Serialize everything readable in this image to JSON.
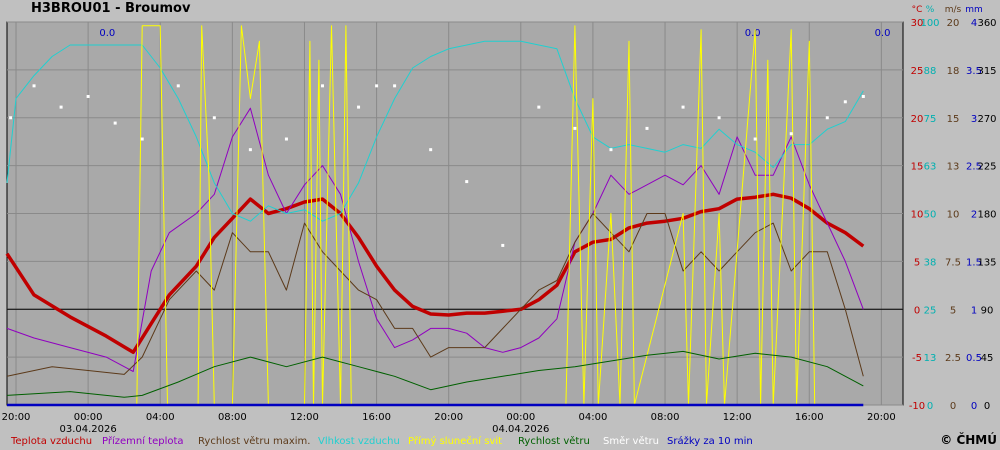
{
  "title": "H3BROU01 - Broumov",
  "copyright": "© ČHMÚ",
  "chart_data": {
    "type": "line",
    "x_ticks": [
      "20:00",
      "00:00",
      "04:00",
      "08:00",
      "12:00",
      "16:00",
      "20:00",
      "00:00",
      "04:00",
      "08:00",
      "12:00",
      "16:00",
      "20:00"
    ],
    "date_labels": [
      {
        "tick": 1,
        "text": "03.04.2026"
      },
      {
        "tick": 7,
        "text": "04.04.2026"
      }
    ],
    "x_range_hours": [
      -1.5,
      48.2
    ],
    "axes": [
      {
        "unit": "°C",
        "color": "#c00000",
        "ticks": [
          "30",
          "25",
          "20",
          "15",
          "10",
          "5",
          "0",
          "-5",
          "-10"
        ],
        "range": [
          -10,
          30
        ]
      },
      {
        "unit": "%",
        "color": "#00b0b0",
        "ticks": [
          "100",
          "88",
          "75",
          "63",
          "50",
          "38",
          "25",
          "13",
          "0"
        ],
        "range": [
          0,
          100
        ]
      },
      {
        "unit": "m/s",
        "color": "#5c3a1a",
        "ticks": [
          "20",
          "18",
          "15",
          "13",
          "10",
          "7.5",
          "5",
          "2.5",
          "0"
        ],
        "range": [
          0,
          20
        ]
      },
      {
        "unit": "mm",
        "color": "#0000c0",
        "ticks": [
          "4",
          "3.5",
          "3",
          "2.5",
          "2",
          "1.5",
          "1",
          "0.5",
          "0"
        ],
        "range": [
          0,
          4
        ]
      },
      {
        "unit": "",
        "color": "#000000",
        "ticks": [
          "360",
          "315",
          "270",
          "225",
          "180",
          "135",
          "90",
          "45",
          "0"
        ],
        "range": [
          0,
          360
        ]
      }
    ],
    "precip_totals": [
      "0.0",
      "0.0",
      "0.0"
    ],
    "legend": [
      {
        "name": "Teplota vzduchu",
        "color": "#c00000"
      },
      {
        "name": "Přízemní teplota",
        "color": "#9000c0"
      },
      {
        "name": "Rychlost větru maxim.",
        "color": "#5c3a1a"
      },
      {
        "name": "Vlhkost vzduchu",
        "color": "#20d0d0"
      },
      {
        "name": "Přímý sluneční svit",
        "color": "#ffff00"
      },
      {
        "name": "Rychlost větru",
        "color": "#006000"
      },
      {
        "name": "Směr větru",
        "color": "#ffffff"
      },
      {
        "name": "Srážky za 10 min",
        "color": "#0000c0"
      }
    ],
    "series": [
      {
        "name": "Teplota vzduchu",
        "unit": "°C",
        "points": [
          [
            -1.5,
            5.8
          ],
          [
            0,
            1.5
          ],
          [
            2,
            -0.8
          ],
          [
            4,
            -2.8
          ],
          [
            5.5,
            -4.5
          ],
          [
            6.5,
            -1.5
          ],
          [
            7.5,
            1.5
          ],
          [
            9,
            4.5
          ],
          [
            10,
            7.5
          ],
          [
            11,
            9.5
          ],
          [
            12,
            11.5
          ],
          [
            13,
            10
          ],
          [
            14,
            10.5
          ],
          [
            15,
            11.2
          ],
          [
            16,
            11.5
          ],
          [
            17,
            10
          ],
          [
            18,
            7.5
          ],
          [
            19,
            4.5
          ],
          [
            20,
            2
          ],
          [
            21,
            0.3
          ],
          [
            22,
            -0.5
          ],
          [
            23,
            -0.6
          ],
          [
            24,
            -0.4
          ],
          [
            25,
            -0.4
          ],
          [
            26,
            -0.2
          ],
          [
            27,
            0
          ],
          [
            28,
            1
          ],
          [
            29,
            2.5
          ],
          [
            30,
            6
          ],
          [
            31,
            7
          ],
          [
            32,
            7.3
          ],
          [
            33,
            8.5
          ],
          [
            34,
            9
          ],
          [
            35,
            9.2
          ],
          [
            36,
            9.5
          ],
          [
            37,
            10.2
          ],
          [
            38,
            10.5
          ],
          [
            39,
            11.5
          ],
          [
            40,
            11.7
          ],
          [
            41,
            12
          ],
          [
            42,
            11.6
          ],
          [
            43,
            10.5
          ],
          [
            44,
            9
          ],
          [
            45,
            8
          ],
          [
            46,
            6.6
          ]
        ]
      },
      {
        "name": "Přízemní teplota",
        "unit": "°C",
        "points": [
          [
            -1.5,
            -2
          ],
          [
            0,
            -3
          ],
          [
            2,
            -4
          ],
          [
            4,
            -5
          ],
          [
            5.5,
            -6.5
          ],
          [
            6.5,
            4
          ],
          [
            7.5,
            8
          ],
          [
            9,
            10
          ],
          [
            10,
            12
          ],
          [
            11,
            18
          ],
          [
            12,
            21
          ],
          [
            13,
            14
          ],
          [
            14,
            10
          ],
          [
            15,
            13
          ],
          [
            16,
            15
          ],
          [
            17,
            12
          ],
          [
            18,
            5
          ],
          [
            19,
            -1
          ],
          [
            20,
            -4
          ],
          [
            21,
            -3.2
          ],
          [
            22,
            -2
          ],
          [
            23,
            -2
          ],
          [
            24,
            -2.5
          ],
          [
            25,
            -4
          ],
          [
            26,
            -4.5
          ],
          [
            27,
            -4
          ],
          [
            28,
            -3
          ],
          [
            29,
            -1
          ],
          [
            30,
            7
          ],
          [
            31,
            10
          ],
          [
            32,
            14
          ],
          [
            33,
            12
          ],
          [
            34,
            13
          ],
          [
            35,
            14
          ],
          [
            36,
            13
          ],
          [
            37,
            15
          ],
          [
            38,
            12
          ],
          [
            39,
            18
          ],
          [
            40,
            14
          ],
          [
            41,
            14
          ],
          [
            42,
            18
          ],
          [
            43,
            13
          ],
          [
            44,
            9
          ],
          [
            45,
            5
          ],
          [
            46,
            0
          ]
        ]
      },
      {
        "name": "Rychlost větru maxim.",
        "unit": "m/s",
        "points": [
          [
            -1.5,
            1.5
          ],
          [
            1,
            2
          ],
          [
            3,
            1.8
          ],
          [
            5,
            1.6
          ],
          [
            6,
            2.5
          ],
          [
            7.5,
            5.5
          ],
          [
            9,
            7
          ],
          [
            10,
            6
          ],
          [
            11,
            9
          ],
          [
            12,
            8
          ],
          [
            13,
            8
          ],
          [
            14,
            6
          ],
          [
            15,
            9.5
          ],
          [
            16,
            8
          ],
          [
            17,
            7
          ],
          [
            18,
            6
          ],
          [
            19,
            5.5
          ],
          [
            20,
            4
          ],
          [
            21,
            4
          ],
          [
            22,
            2.5
          ],
          [
            23,
            3
          ],
          [
            24,
            3
          ],
          [
            25,
            3
          ],
          [
            26,
            4
          ],
          [
            27,
            5
          ],
          [
            28,
            6
          ],
          [
            29,
            6.5
          ],
          [
            30,
            8.5
          ],
          [
            31,
            10
          ],
          [
            32,
            9
          ],
          [
            33,
            8
          ],
          [
            34,
            10
          ],
          [
            35,
            10
          ],
          [
            36,
            7
          ],
          [
            37,
            8
          ],
          [
            38,
            7
          ],
          [
            39,
            8
          ],
          [
            40,
            9
          ],
          [
            41,
            9.5
          ],
          [
            42,
            7
          ],
          [
            43,
            8
          ],
          [
            44,
            8
          ],
          [
            45,
            5
          ],
          [
            46,
            1.5
          ]
        ]
      },
      {
        "name": "Vlhkost vzduchu",
        "unit": "%",
        "points": [
          [
            -1.5,
            58
          ],
          [
            -1,
            80
          ],
          [
            0,
            86
          ],
          [
            1,
            91
          ],
          [
            2,
            94
          ],
          [
            3,
            94
          ],
          [
            4,
            94
          ],
          [
            5,
            94
          ],
          [
            6,
            94
          ],
          [
            7,
            88
          ],
          [
            8,
            80
          ],
          [
            9,
            70
          ],
          [
            10,
            58
          ],
          [
            11,
            50
          ],
          [
            12,
            48
          ],
          [
            13,
            52
          ],
          [
            14,
            50
          ],
          [
            15,
            51
          ],
          [
            16,
            48
          ],
          [
            17,
            50
          ],
          [
            18,
            58
          ],
          [
            19,
            70
          ],
          [
            20,
            80
          ],
          [
            21,
            88
          ],
          [
            22,
            91
          ],
          [
            23,
            93
          ],
          [
            24,
            94
          ],
          [
            25,
            95
          ],
          [
            26,
            95
          ],
          [
            27,
            95
          ],
          [
            28,
            94
          ],
          [
            29,
            93
          ],
          [
            30,
            80
          ],
          [
            31,
            70
          ],
          [
            32,
            67
          ],
          [
            33,
            68
          ],
          [
            34,
            67
          ],
          [
            35,
            66
          ],
          [
            36,
            68
          ],
          [
            37,
            67
          ],
          [
            38,
            72
          ],
          [
            39,
            68
          ],
          [
            40,
            66
          ],
          [
            41,
            62
          ],
          [
            42,
            68
          ],
          [
            43,
            68
          ],
          [
            44,
            72
          ],
          [
            45,
            74
          ],
          [
            46,
            82
          ]
        ]
      },
      {
        "name": "Přímý sluneční svit",
        "unit": "%",
        "points": [
          [
            5.7,
            0
          ],
          [
            6,
            99
          ],
          [
            7,
            99
          ],
          [
            7.4,
            0
          ],
          [
            9.1,
            0
          ],
          [
            9.3,
            99
          ],
          [
            9.7,
            60
          ],
          [
            10,
            0
          ],
          [
            11,
            0
          ],
          [
            11.5,
            99
          ],
          [
            12,
            80
          ],
          [
            12.5,
            95
          ],
          [
            13,
            0
          ],
          [
            15,
            0
          ],
          [
            15.3,
            95
          ],
          [
            15.5,
            0
          ],
          [
            15.8,
            90
          ],
          [
            16,
            0
          ],
          [
            16.5,
            99
          ],
          [
            17,
            0
          ],
          [
            17.3,
            99
          ],
          [
            17.6,
            0
          ],
          [
            29.5,
            0
          ],
          [
            30,
            99
          ],
          [
            30.5,
            0
          ],
          [
            31,
            80
          ],
          [
            31.3,
            0
          ],
          [
            32,
            50
          ],
          [
            32.5,
            0
          ],
          [
            33,
            95
          ],
          [
            33.3,
            0
          ],
          [
            36,
            50
          ],
          [
            36.3,
            0
          ],
          [
            37,
            98
          ],
          [
            37.3,
            0
          ],
          [
            38,
            50
          ],
          [
            38.3,
            0
          ],
          [
            40,
            98
          ],
          [
            40.3,
            0
          ],
          [
            40.7,
            90
          ],
          [
            41,
            0
          ],
          [
            42,
            98
          ],
          [
            42.3,
            0
          ],
          [
            43,
            95
          ],
          [
            43.3,
            0
          ]
        ]
      },
      {
        "name": "Rychlost větru",
        "unit": "m/s",
        "points": [
          [
            -1.5,
            0.5
          ],
          [
            2,
            0.7
          ],
          [
            5,
            0.4
          ],
          [
            6,
            0.5
          ],
          [
            8,
            1.2
          ],
          [
            10,
            2
          ],
          [
            12,
            2.5
          ],
          [
            14,
            2
          ],
          [
            16,
            2.5
          ],
          [
            18,
            2
          ],
          [
            20,
            1.5
          ],
          [
            22,
            0.8
          ],
          [
            24,
            1.2
          ],
          [
            26,
            1.5
          ],
          [
            28,
            1.8
          ],
          [
            30,
            2
          ],
          [
            32,
            2.3
          ],
          [
            34,
            2.6
          ],
          [
            36,
            2.8
          ],
          [
            38,
            2.4
          ],
          [
            40,
            2.7
          ],
          [
            42,
            2.5
          ],
          [
            44,
            2
          ],
          [
            45,
            1.5
          ],
          [
            46,
            1
          ]
        ]
      },
      {
        "name": "Srážky za 10 min",
        "unit": "mm",
        "points": [
          [
            -1.5,
            0
          ],
          [
            46,
            0
          ]
        ]
      }
    ],
    "wind_direction_deg": [
      [
        -1.3,
        270
      ],
      [
        0,
        300
      ],
      [
        1.5,
        280
      ],
      [
        3,
        290
      ],
      [
        4.5,
        265
      ],
      [
        6,
        250
      ],
      [
        8,
        300
      ],
      [
        10,
        270
      ],
      [
        12,
        240
      ],
      [
        14,
        250
      ],
      [
        16,
        300
      ],
      [
        18,
        280
      ],
      [
        19,
        300
      ],
      [
        20,
        300
      ],
      [
        22,
        240
      ],
      [
        24,
        210
      ],
      [
        26,
        150
      ],
      [
        28,
        280
      ],
      [
        30,
        260
      ],
      [
        32,
        240
      ],
      [
        34,
        260
      ],
      [
        36,
        280
      ],
      [
        38,
        270
      ],
      [
        40,
        250
      ],
      [
        42,
        255
      ],
      [
        44,
        270
      ],
      [
        45,
        285
      ],
      [
        46,
        290
      ]
    ],
    "reference_line": {
      "axis": "°C",
      "value": 0
    }
  }
}
